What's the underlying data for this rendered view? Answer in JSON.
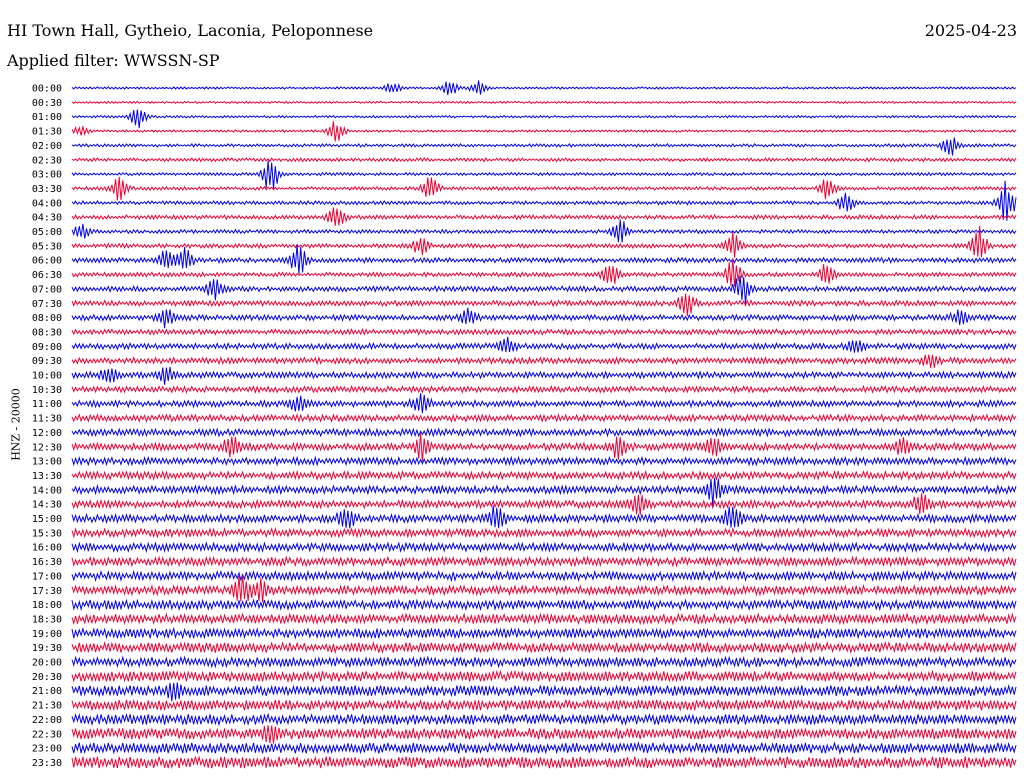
{
  "header": {
    "station": "HI Town Hall, Gytheio, Laconia, Peloponnese",
    "date": "2025-04-23",
    "filter": "Applied filter: WWSSN-SP"
  },
  "chart_data": {
    "type": "line",
    "title": "",
    "ylabel": "HNZ - 20000",
    "xlabel": "",
    "colors": [
      "#0000ee",
      "#ee0033"
    ],
    "rows": [
      {
        "label": "00:00",
        "events": [
          [
            0.34,
            5
          ],
          [
            0.4,
            7
          ],
          [
            0.43,
            6
          ]
        ]
      },
      {
        "label": "00:30",
        "events": []
      },
      {
        "label": "01:00",
        "events": [
          [
            0.07,
            10
          ]
        ]
      },
      {
        "label": "01:30",
        "events": [
          [
            0.01,
            4
          ],
          [
            0.28,
            9
          ]
        ]
      },
      {
        "label": "02:00",
        "events": [
          [
            0.93,
            9
          ]
        ]
      },
      {
        "label": "02:30",
        "events": []
      },
      {
        "label": "03:00",
        "events": [
          [
            0.21,
            16
          ]
        ]
      },
      {
        "label": "03:30",
        "events": [
          [
            0.05,
            11
          ],
          [
            0.38,
            10
          ],
          [
            0.8,
            9
          ]
        ]
      },
      {
        "label": "04:00",
        "events": [
          [
            0.82,
            10
          ],
          [
            0.99,
            20
          ]
        ]
      },
      {
        "label": "04:30",
        "events": [
          [
            0.28,
            9
          ]
        ]
      },
      {
        "label": "05:00",
        "events": [
          [
            0.01,
            6
          ],
          [
            0.58,
            11
          ]
        ]
      },
      {
        "label": "05:30",
        "events": [
          [
            0.37,
            8
          ],
          [
            0.7,
            11
          ],
          [
            0.96,
            16
          ]
        ]
      },
      {
        "label": "06:00",
        "events": [
          [
            0.1,
            9
          ],
          [
            0.12,
            10
          ],
          [
            0.24,
            12
          ]
        ]
      },
      {
        "label": "06:30",
        "events": [
          [
            0.57,
            10
          ],
          [
            0.7,
            12
          ],
          [
            0.8,
            10
          ]
        ]
      },
      {
        "label": "07:00",
        "events": [
          [
            0.15,
            9
          ],
          [
            0.71,
            14
          ]
        ]
      },
      {
        "label": "07:30",
        "events": [
          [
            0.65,
            12
          ]
        ]
      },
      {
        "label": "08:00",
        "events": [
          [
            0.1,
            8
          ],
          [
            0.42,
            7
          ],
          [
            0.94,
            7
          ]
        ]
      },
      {
        "label": "08:30",
        "events": []
      },
      {
        "label": "09:00",
        "events": [
          [
            0.46,
            7
          ],
          [
            0.83,
            6
          ]
        ]
      },
      {
        "label": "09:30",
        "events": [
          [
            0.91,
            6
          ]
        ]
      },
      {
        "label": "10:00",
        "events": [
          [
            0.04,
            7
          ],
          [
            0.1,
            7
          ]
        ]
      },
      {
        "label": "10:30",
        "events": []
      },
      {
        "label": "11:00",
        "events": [
          [
            0.24,
            7
          ],
          [
            0.37,
            11
          ]
        ]
      },
      {
        "label": "11:30",
        "events": []
      },
      {
        "label": "12:00",
        "events": []
      },
      {
        "label": "12:30",
        "events": [
          [
            0.17,
            11
          ],
          [
            0.37,
            10
          ],
          [
            0.58,
            10
          ],
          [
            0.68,
            8
          ],
          [
            0.88,
            8
          ]
        ]
      },
      {
        "label": "13:00",
        "events": []
      },
      {
        "label": "13:30",
        "events": []
      },
      {
        "label": "14:00",
        "events": [
          [
            0.68,
            11
          ]
        ]
      },
      {
        "label": "14:30",
        "events": [
          [
            0.6,
            9
          ],
          [
            0.9,
            8
          ]
        ]
      },
      {
        "label": "15:00",
        "events": [
          [
            0.29,
            9
          ],
          [
            0.45,
            11
          ],
          [
            0.7,
            11
          ]
        ]
      },
      {
        "label": "15:30",
        "events": []
      },
      {
        "label": "16:00",
        "events": []
      },
      {
        "label": "16:30",
        "events": []
      },
      {
        "label": "17:00",
        "events": []
      },
      {
        "label": "17:30",
        "events": [
          [
            0.18,
            13
          ],
          [
            0.2,
            8
          ]
        ]
      },
      {
        "label": "18:00",
        "events": []
      },
      {
        "label": "18:30",
        "events": []
      },
      {
        "label": "19:00",
        "events": []
      },
      {
        "label": "19:30",
        "events": []
      },
      {
        "label": "20:00",
        "events": []
      },
      {
        "label": "20:30",
        "events": []
      },
      {
        "label": "21:00",
        "events": [
          [
            0.11,
            8
          ]
        ]
      },
      {
        "label": "21:30",
        "events": []
      },
      {
        "label": "22:00",
        "events": []
      },
      {
        "label": "22:30",
        "events": [
          [
            0.21,
            6
          ]
        ]
      },
      {
        "label": "23:00",
        "events": []
      },
      {
        "label": "23:30",
        "events": []
      }
    ]
  }
}
